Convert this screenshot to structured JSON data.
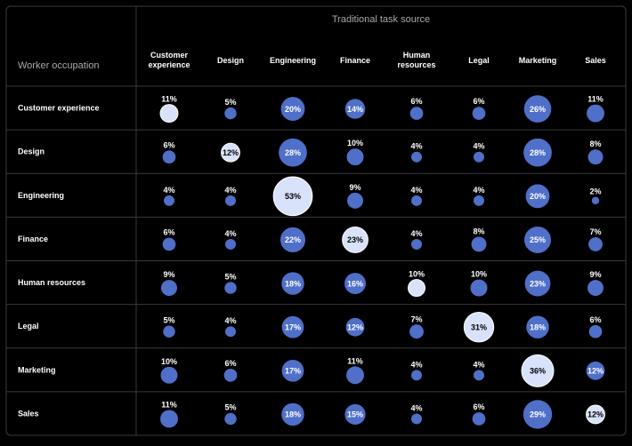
{
  "chart_data": {
    "type": "bubble-matrix",
    "column_group_title": "Traditional task source",
    "row_axis_title": "Worker occupation",
    "columns": [
      [
        "Customer",
        "experience"
      ],
      [
        "Design"
      ],
      [
        "Engineering"
      ],
      [
        "Finance"
      ],
      [
        "Human",
        "resources"
      ],
      [
        "Legal"
      ],
      [
        "Marketing"
      ],
      [
        "Sales"
      ]
    ],
    "rows": [
      "Customer experience",
      "Design",
      "Engineering",
      "Finance",
      "Human resources",
      "Legal",
      "Marketing",
      "Sales"
    ],
    "value_format": "{v}%",
    "values": [
      [
        11,
        5,
        20,
        14,
        6,
        6,
        26,
        11
      ],
      [
        6,
        12,
        28,
        10,
        4,
        4,
        28,
        8
      ],
      [
        4,
        4,
        53,
        9,
        4,
        4,
        20,
        2
      ],
      [
        6,
        4,
        22,
        23,
        4,
        8,
        25,
        7
      ],
      [
        9,
        5,
        18,
        16,
        10,
        10,
        23,
        9
      ],
      [
        5,
        4,
        17,
        12,
        7,
        31,
        18,
        6
      ],
      [
        10,
        6,
        17,
        11,
        4,
        4,
        36,
        12
      ],
      [
        11,
        5,
        18,
        15,
        4,
        6,
        29,
        12
      ]
    ],
    "highlight": "diagonal (same occupation and task source)"
  },
  "colors": {
    "background": "#000000",
    "panel_border": "#3a3a3a",
    "divider": "#3a3a3a",
    "bubble": "#4f6fc8",
    "bubble_highlight": "#d8e2fb",
    "text": "#ffffff",
    "muted_text": "#a9a9a9"
  }
}
